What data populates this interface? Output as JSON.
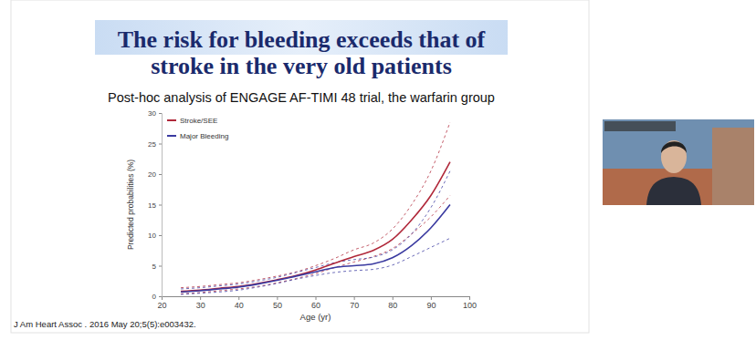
{
  "chart_data": {
    "type": "line",
    "title": "The risk for bleeding exceeds that of stroke in the very old patients",
    "subtitle": "Post-hoc analysis of ENGAGE AF-TIMI 48 trial, the warfarin group",
    "annotations": [
      "J Am Heart Assoc . 2016 May 20;5(5):e003432."
    ],
    "x_label": "Age (yr)",
    "y_label": "Predicted probabilities (%)",
    "x": [
      25,
      30,
      35,
      40,
      45,
      50,
      55,
      60,
      65,
      70,
      75,
      80,
      85,
      90,
      95
    ],
    "series": [
      {
        "name": "Stroke/SEE",
        "color": "#b0283a",
        "values": [
          0.8,
          1.0,
          1.3,
          1.6,
          2.1,
          2.7,
          3.4,
          4.3,
          5.4,
          6.5,
          7.5,
          9.3,
          12.5,
          16.5,
          22.0
        ],
        "ci_upper": [
          1.4,
          1.6,
          1.9,
          2.2,
          2.7,
          3.3,
          4.0,
          5.0,
          6.2,
          7.6,
          8.7,
          11.0,
          15.0,
          20.5,
          28.5
        ],
        "ci_lower": [
          0.4,
          0.6,
          0.9,
          1.2,
          1.6,
          2.2,
          2.9,
          3.7,
          4.7,
          5.6,
          6.5,
          7.8,
          10.2,
          13.0,
          16.5
        ]
      },
      {
        "name": "Major Bleeding",
        "color": "#3a3aa0",
        "values": [
          0.7,
          0.9,
          1.2,
          1.5,
          2.0,
          2.6,
          3.3,
          4.0,
          4.7,
          5.0,
          5.3,
          6.3,
          8.3,
          11.2,
          15.0
        ],
        "ci_upper": [
          1.2,
          1.4,
          1.7,
          2.0,
          2.5,
          3.1,
          3.9,
          4.7,
          5.5,
          6.0,
          6.4,
          7.6,
          10.2,
          14.5,
          20.5
        ],
        "ci_lower": [
          0.3,
          0.5,
          0.7,
          1.0,
          1.5,
          2.1,
          2.8,
          3.4,
          3.9,
          4.2,
          4.4,
          5.1,
          6.5,
          8.0,
          9.5
        ]
      }
    ],
    "xlim": [
      20,
      100
    ],
    "xticks": [
      20,
      30,
      40,
      50,
      60,
      70,
      80,
      90,
      100
    ],
    "ylim": [
      0,
      30
    ],
    "yticks": [
      0,
      5,
      10,
      15,
      20,
      25,
      30
    ],
    "grid": false,
    "legend": "upper left"
  }
}
